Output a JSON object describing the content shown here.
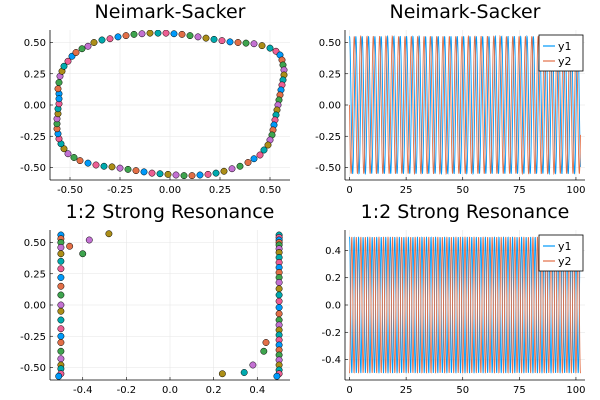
{
  "chart_data": [
    {
      "type": "scatter",
      "title": "Neimark-Sacker",
      "xlim": [
        -0.6,
        0.6
      ],
      "ylim": [
        -0.6,
        0.6
      ],
      "xticks": [
        -0.5,
        -0.25,
        0.0,
        0.25,
        0.5
      ],
      "xtick_labels": [
        "-0.50",
        "-0.25",
        "0.00",
        "0.25",
        "0.50"
      ],
      "yticks": [
        -0.5,
        -0.25,
        0.0,
        0.25,
        0.5
      ],
      "ytick_labels": [
        "-0.50",
        "-0.25",
        "0.00",
        "0.25",
        "0.50"
      ],
      "grid": true,
      "legend": "none",
      "marker_colors": [
        "#009AFA",
        "#E36F47",
        "#3EA44E",
        "#C371D2",
        "#AC8E18",
        "#00AAAE",
        "#ED5E93"
      ],
      "points": [
        [
          -0.555,
          0.09
        ],
        [
          -0.56,
          0.13
        ],
        [
          -0.555,
          0.18
        ],
        [
          -0.55,
          0.23
        ],
        [
          -0.54,
          0.27
        ],
        [
          -0.53,
          0.31
        ],
        [
          -0.51,
          0.35
        ],
        [
          -0.49,
          0.39
        ],
        [
          -0.47,
          0.42
        ],
        [
          -0.44,
          0.45
        ],
        [
          -0.41,
          0.47
        ],
        [
          -0.38,
          0.5
        ],
        [
          -0.34,
          0.52
        ],
        [
          -0.3,
          0.53
        ],
        [
          -0.26,
          0.545
        ],
        [
          -0.22,
          0.555
        ],
        [
          -0.18,
          0.565
        ],
        [
          -0.14,
          0.57
        ],
        [
          -0.1,
          0.575
        ],
        [
          -0.06,
          0.575
        ],
        [
          -0.02,
          0.575
        ],
        [
          0.02,
          0.57
        ],
        [
          0.06,
          0.565
        ],
        [
          0.1,
          0.555
        ],
        [
          0.14,
          0.545
        ],
        [
          0.18,
          0.535
        ],
        [
          0.22,
          0.525
        ],
        [
          0.26,
          0.515
        ],
        [
          0.3,
          0.505
        ],
        [
          0.34,
          0.5
        ],
        [
          0.38,
          0.495
        ],
        [
          0.42,
          0.49
        ],
        [
          0.46,
          0.475
        ],
        [
          0.5,
          0.455
        ],
        [
          0.53,
          0.43
        ],
        [
          0.55,
          0.4
        ],
        [
          0.56,
          0.36
        ],
        [
          0.565,
          0.32
        ],
        [
          0.57,
          0.28
        ],
        [
          0.57,
          0.24
        ],
        [
          0.565,
          0.2
        ],
        [
          0.56,
          0.16
        ],
        [
          0.555,
          0.12
        ],
        [
          0.55,
          0.08
        ],
        [
          0.545,
          0.04
        ],
        [
          0.54,
          0.0
        ],
        [
          0.535,
          -0.04
        ],
        [
          0.53,
          -0.08
        ],
        [
          0.525,
          -0.12
        ],
        [
          0.52,
          -0.16
        ],
        [
          0.515,
          -0.2
        ],
        [
          0.51,
          -0.24
        ],
        [
          0.5,
          -0.28
        ],
        [
          0.49,
          -0.32
        ],
        [
          0.47,
          -0.36
        ],
        [
          0.45,
          -0.4
        ],
        [
          0.42,
          -0.43
        ],
        [
          0.39,
          -0.46
        ],
        [
          0.35,
          -0.49
        ],
        [
          0.31,
          -0.51
        ],
        [
          0.27,
          -0.53
        ],
        [
          0.23,
          -0.545
        ],
        [
          0.19,
          -0.555
        ],
        [
          0.15,
          -0.56
        ],
        [
          0.11,
          -0.565
        ],
        [
          0.07,
          -0.565
        ],
        [
          0.03,
          -0.56
        ],
        [
          -0.01,
          -0.555
        ],
        [
          -0.05,
          -0.55
        ],
        [
          -0.09,
          -0.545
        ],
        [
          -0.13,
          -0.535
        ],
        [
          -0.17,
          -0.525
        ],
        [
          -0.21,
          -0.515
        ],
        [
          -0.25,
          -0.505
        ],
        [
          -0.29,
          -0.495
        ],
        [
          -0.33,
          -0.49
        ],
        [
          -0.37,
          -0.48
        ],
        [
          -0.41,
          -0.465
        ],
        [
          -0.45,
          -0.445
        ],
        [
          -0.48,
          -0.42
        ],
        [
          -0.51,
          -0.39
        ],
        [
          -0.53,
          -0.35
        ],
        [
          -0.545,
          -0.31
        ],
        [
          -0.555,
          -0.27
        ],
        [
          -0.56,
          -0.23
        ],
        [
          -0.565,
          -0.19
        ],
        [
          -0.565,
          -0.15
        ],
        [
          -0.565,
          -0.11
        ],
        [
          -0.56,
          -0.07
        ],
        [
          -0.56,
          -0.03
        ],
        [
          -0.555,
          0.01
        ],
        [
          -0.555,
          0.05
        ]
      ]
    },
    {
      "type": "line",
      "title": "Neimark-Sacker",
      "xlim": [
        -2,
        104
      ],
      "ylim": [
        -0.6,
        0.6
      ],
      "xticks": [
        0,
        25,
        50,
        75,
        100
      ],
      "xtick_labels": [
        "0",
        "25",
        "50",
        "75",
        "100"
      ],
      "yticks": [
        -0.5,
        -0.25,
        0.0,
        0.25,
        0.5
      ],
      "ytick_labels": [
        "-0.50",
        "-0.25",
        "0.00",
        "0.25",
        "0.50"
      ],
      "grid": true,
      "legend": "top-right",
      "period": 2.8,
      "amplitude": 0.55,
      "x_range": [
        0,
        102
      ],
      "series": [
        {
          "name": "y1",
          "color": "#009AFA",
          "phase": 0.0
        },
        {
          "name": "y2",
          "color": "#E36F47",
          "phase": 1.5708
        }
      ]
    },
    {
      "type": "scatter",
      "title": "1:2 Strong Resonance",
      "xlim": [
        -0.55,
        0.55
      ],
      "ylim": [
        -0.6,
        0.6
      ],
      "xticks": [
        -0.4,
        -0.2,
        0.0,
        0.2,
        0.4
      ],
      "xtick_labels": [
        "-0.4",
        "-0.2",
        "0.0",
        "0.2",
        "0.4"
      ],
      "yticks": [
        -0.5,
        -0.25,
        0.0,
        0.25,
        0.5
      ],
      "ytick_labels": [
        "-0.50",
        "-0.25",
        "0.00",
        "0.25",
        "0.50"
      ],
      "grid": true,
      "legend": "none",
      "marker_colors": [
        "#009AFA",
        "#E36F47",
        "#3EA44E",
        "#C371D2",
        "#AC8E18",
        "#00AAAE",
        "#ED5E93"
      ],
      "points": [
        [
          -0.5,
          0.56
        ],
        [
          -0.5,
          0.53
        ],
        [
          -0.5,
          0.5
        ],
        [
          -0.5,
          0.46
        ],
        [
          -0.5,
          0.41
        ],
        [
          -0.5,
          0.35
        ],
        [
          -0.5,
          0.29
        ],
        [
          -0.5,
          0.22
        ],
        [
          -0.5,
          0.15
        ],
        [
          -0.5,
          0.08
        ],
        [
          -0.5,
          0.0
        ],
        [
          -0.5,
          -0.05
        ],
        [
          -0.5,
          -0.12
        ],
        [
          -0.5,
          -0.19
        ],
        [
          -0.5,
          -0.25
        ],
        [
          -0.5,
          -0.3
        ],
        [
          -0.5,
          -0.37
        ],
        [
          -0.5,
          -0.43
        ],
        [
          -0.5,
          -0.48
        ],
        [
          -0.5,
          -0.51
        ],
        [
          -0.5,
          -0.55
        ],
        [
          -0.51,
          -0.57
        ],
        [
          -0.46,
          0.47
        ],
        [
          -0.4,
          0.41
        ],
        [
          -0.37,
          0.52
        ],
        [
          -0.28,
          0.57
        ],
        [
          0.5,
          0.56
        ],
        [
          0.5,
          0.54
        ],
        [
          0.5,
          0.52
        ],
        [
          0.5,
          0.5
        ],
        [
          0.5,
          0.48
        ],
        [
          0.5,
          0.45
        ],
        [
          0.5,
          0.42
        ],
        [
          0.5,
          0.38
        ],
        [
          0.5,
          0.34
        ],
        [
          0.5,
          0.3
        ],
        [
          0.5,
          0.26
        ],
        [
          0.5,
          0.22
        ],
        [
          0.5,
          0.18
        ],
        [
          0.5,
          0.13
        ],
        [
          0.5,
          0.08
        ],
        [
          0.5,
          0.03
        ],
        [
          0.5,
          -0.02
        ],
        [
          0.5,
          -0.07
        ],
        [
          0.5,
          -0.12
        ],
        [
          0.5,
          -0.16
        ],
        [
          0.5,
          -0.2
        ],
        [
          0.5,
          -0.24
        ],
        [
          0.5,
          -0.28
        ],
        [
          0.5,
          -0.32
        ],
        [
          0.5,
          -0.36
        ],
        [
          0.5,
          -0.4
        ],
        [
          0.5,
          -0.44
        ],
        [
          0.5,
          -0.48
        ],
        [
          0.5,
          -0.52
        ],
        [
          0.5,
          -0.55
        ],
        [
          0.49,
          -0.57
        ],
        [
          0.44,
          -0.3
        ],
        [
          0.43,
          -0.37
        ],
        [
          0.38,
          -0.48
        ],
        [
          0.24,
          -0.55
        ],
        [
          0.34,
          -0.54
        ]
      ]
    },
    {
      "type": "line",
      "title": "1:2 Strong Resonance",
      "xlim": [
        -2,
        104
      ],
      "ylim": [
        -0.55,
        0.55
      ],
      "xticks": [
        0,
        25,
        50,
        75,
        100
      ],
      "xtick_labels": [
        "0",
        "25",
        "50",
        "75",
        "100"
      ],
      "yticks": [
        -0.4,
        -0.2,
        0.0,
        0.2,
        0.4
      ],
      "ytick_labels": [
        "-0.4",
        "-0.2",
        "0.0",
        "0.2",
        "0.4"
      ],
      "grid": true,
      "legend": "top-right",
      "period": 2.0,
      "amplitude": 0.5,
      "x_range": [
        0,
        102
      ],
      "series": [
        {
          "name": "y1",
          "color": "#009AFA",
          "phase": 0.0
        },
        {
          "name": "y2",
          "color": "#E36F47",
          "phase": 3.1416
        }
      ]
    }
  ]
}
